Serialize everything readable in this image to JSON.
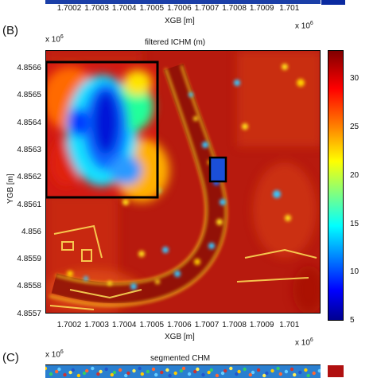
{
  "top_panel": {
    "x_ticks": [
      "1.7002",
      "1.7003",
      "1.7004",
      "1.7005",
      "1.7006",
      "1.7007",
      "1.7008",
      "1.7009",
      "1.701"
    ],
    "x_label": "XGB [m]",
    "x_scale": "x 10",
    "x_scale_exp": "6"
  },
  "panel_b": {
    "letter": "(B)",
    "title": "filtered ICHM (m)",
    "y_scale": "x 10",
    "y_scale_exp": "6",
    "y_label": "YGB [m]",
    "y_ticks": [
      "4.8566",
      "4.8565",
      "4.8564",
      "4.8563",
      "4.8562",
      "4.8561",
      "4.856",
      "4.8559",
      "4.8558",
      "4.8557"
    ],
    "x_ticks": [
      "1.7002",
      "1.7003",
      "1.7004",
      "1.7005",
      "1.7006",
      "1.7007",
      "1.7008",
      "1.7009",
      "1.701"
    ],
    "x_label": "XGB [m]",
    "x_scale": "x 10",
    "x_scale_exp": "6",
    "colorbar_ticks": [
      "30",
      "25",
      "20",
      "15",
      "10",
      "5"
    ],
    "colormap": "jet",
    "colorbar_range": [
      5,
      33
    ]
  },
  "panel_c": {
    "letter": "(C)",
    "title": "segmented CHM",
    "y_scale": "x 10",
    "y_scale_exp": "6"
  }
}
